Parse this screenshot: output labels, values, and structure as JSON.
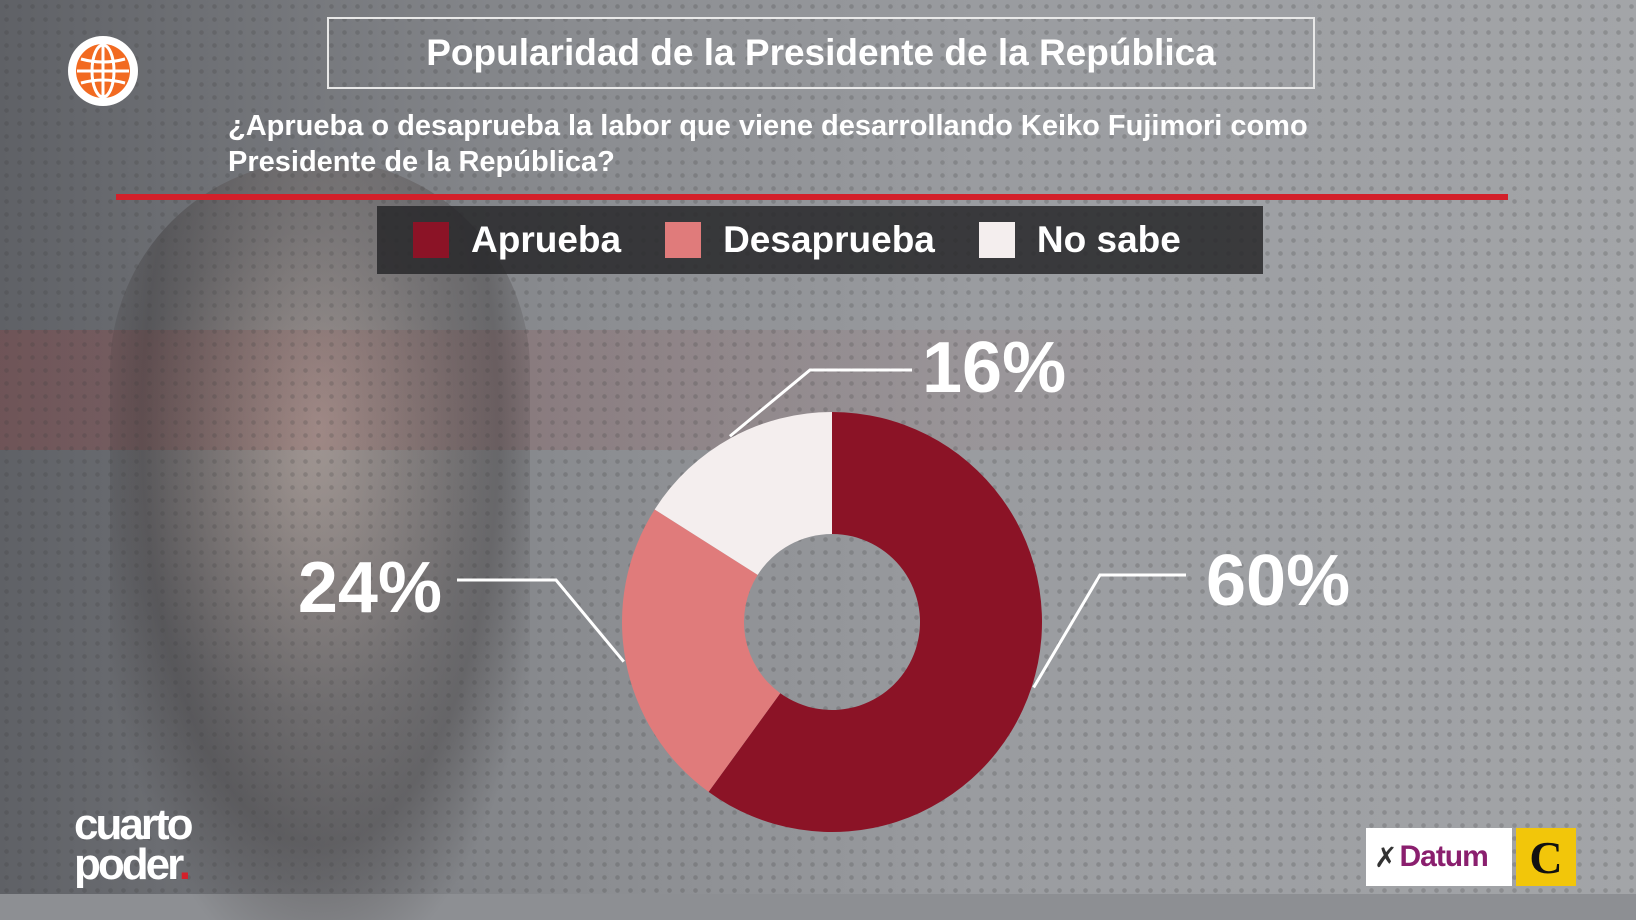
{
  "title": "Popularidad de la Presidente de la República",
  "question": "¿Aprueba o desaprueba la labor que viene desarrollando Keiko Fujimori como Presidente de la República?",
  "brand": {
    "line1": "cuarto",
    "line2": "poder",
    "dot": "."
  },
  "sponsors": {
    "datum": "Datum",
    "comercio": "C"
  },
  "icons": {
    "channel_logo": "globe-icon",
    "datum_logo": "datum-figure-icon"
  },
  "colors": {
    "accent_rule": "#d3202a"
  },
  "chart_data": {
    "type": "pie",
    "donut": true,
    "legend_position": "top-center",
    "slices": [
      {
        "label": "Aprueba",
        "value": 60,
        "display": "60%",
        "color": "#8b1326"
      },
      {
        "label": "Desaprueba",
        "value": 24,
        "display": "24%",
        "color": "#e07b7b"
      },
      {
        "label": "No sabe",
        "value": 16,
        "display": "16%",
        "color": "#f4eeee"
      }
    ]
  }
}
